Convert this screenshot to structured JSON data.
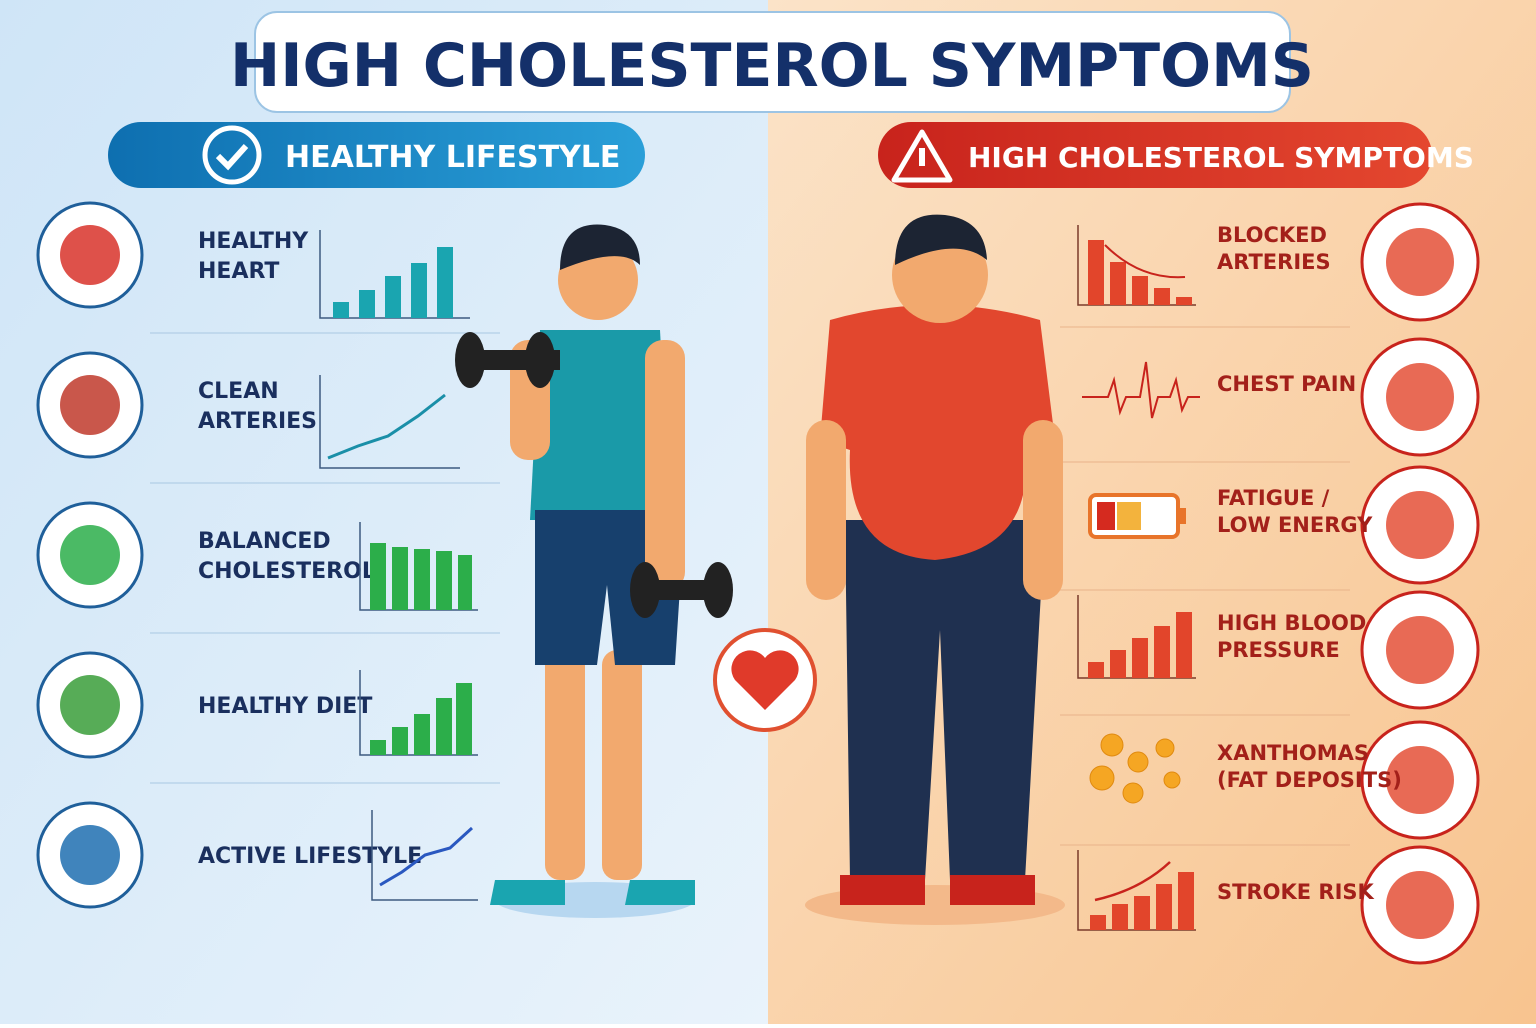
{
  "header": {
    "title": "HIGH CHOLESTEROL SYMPTOMS"
  },
  "left_panel": {
    "heading": "HEALTHY LIFESTYLE",
    "items": [
      {
        "lines": [
          "HEALTHY",
          "HEART"
        ]
      },
      {
        "lines": [
          "CLEAN",
          "ARTERIES"
        ]
      },
      {
        "lines": [
          "BALANCED",
          "CHOLESTEROL"
        ]
      },
      {
        "lines": [
          "HEALTHY DIET"
        ]
      },
      {
        "lines": [
          "ACTIVE LIFESTYLE"
        ]
      }
    ]
  },
  "right_panel": {
    "heading": "HIGH CHOLESTEROL SYMPTOMS",
    "items": [
      {
        "lines": [
          "BLOCKED",
          "ARTERIES"
        ]
      },
      {
        "lines": [
          "CHEST PAIN"
        ]
      },
      {
        "lines": [
          "FATIGUE /",
          "LOW ENERGY"
        ]
      },
      {
        "lines": [
          "HIGH BLOOD",
          "PRESSURE"
        ]
      },
      {
        "lines": [
          "XANTHOMAS",
          "(FAT DEPOSITS)"
        ]
      },
      {
        "lines": [
          "STROKE RISK"
        ]
      }
    ]
  }
}
